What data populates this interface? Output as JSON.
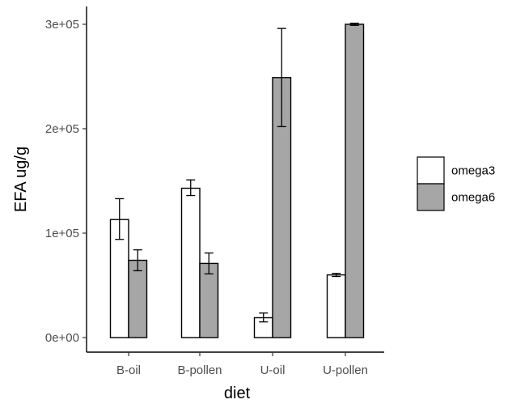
{
  "chart_data": {
    "type": "bar",
    "xlabel": "diet",
    "ylabel": "EFA ug/g",
    "categories": [
      "B-oil",
      "B-pollen",
      "U-oil",
      "U-pollen"
    ],
    "ylim": [
      0,
      310000
    ],
    "yticks": [
      0,
      100000,
      200000,
      300000
    ],
    "ytick_labels": [
      "0e+00",
      "1e+05",
      "2e+05",
      "3e+05"
    ],
    "grid": false,
    "legend_position": "right",
    "series": [
      {
        "name": "omega3",
        "color": "#ffffff",
        "values": [
          113000,
          143000,
          19000,
          60000
        ],
        "err_low": [
          94000,
          136000,
          15000,
          58500
        ],
        "err_high": [
          133000,
          151000,
          23500,
          61500
        ]
      },
      {
        "name": "omega6",
        "color": "#a6a6a6",
        "values": [
          74000,
          71000,
          249000,
          300000
        ],
        "err_low": [
          64000,
          61000,
          202000,
          299000
        ],
        "err_high": [
          84000,
          81000,
          296000,
          301000
        ]
      }
    ]
  }
}
